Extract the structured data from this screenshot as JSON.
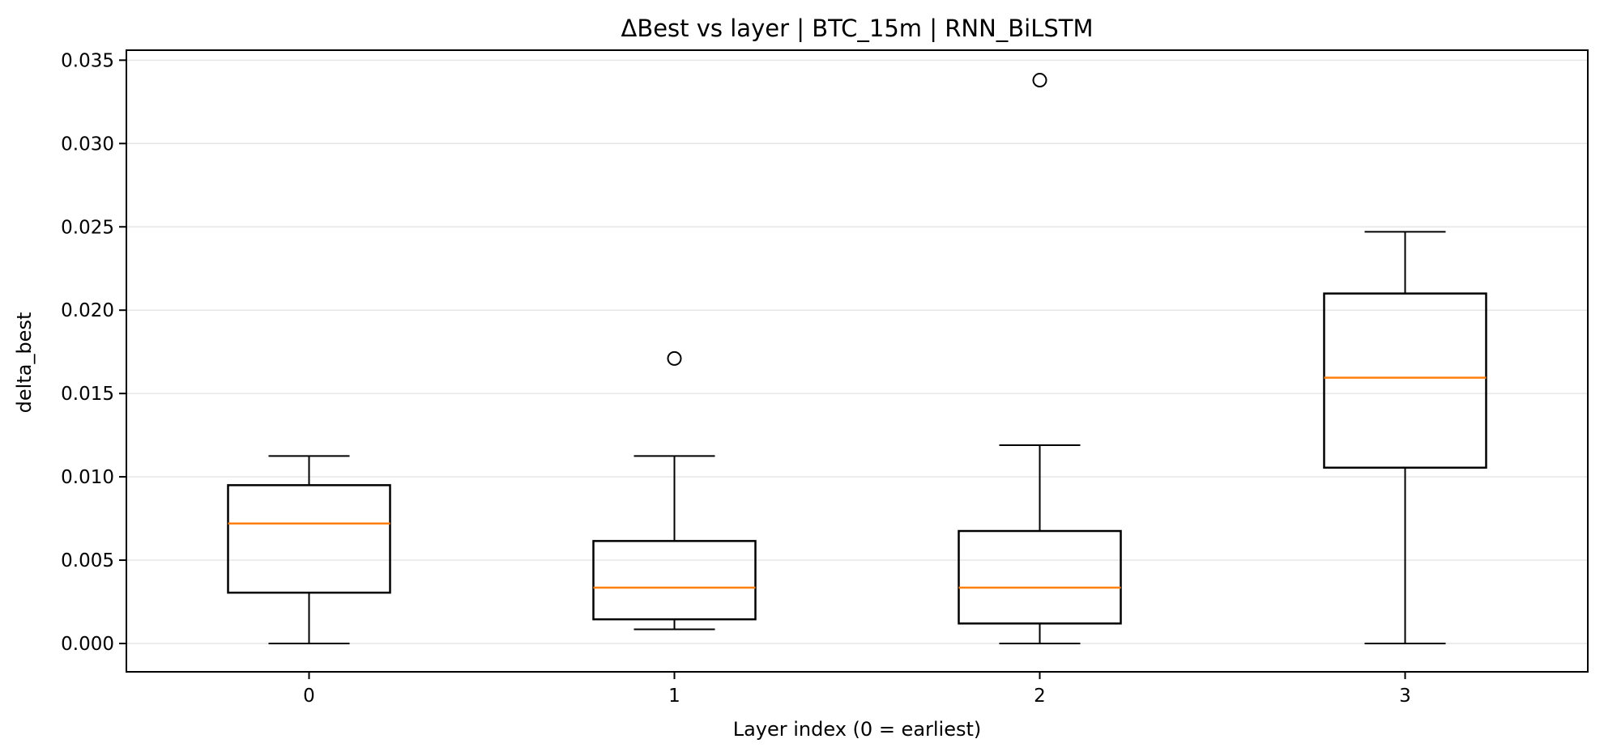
{
  "chart_data": {
    "type": "box",
    "title": "ΔBest vs layer | BTC_15m | RNN_BiLSTM",
    "xlabel": "Layer index (0 = earliest)",
    "ylabel": "delta_best",
    "categories": [
      "0",
      "1",
      "2",
      "3"
    ],
    "ylim": [
      -0.0017,
      0.0356
    ],
    "yticks": [
      "0.000",
      "0.005",
      "0.010",
      "0.015",
      "0.020",
      "0.025",
      "0.030",
      "0.035"
    ],
    "grid": "y",
    "legend": "none",
    "boxes": [
      {
        "category": "0",
        "whisker_low": 0.0,
        "q1": 0.00305,
        "median": 0.0072,
        "q3": 0.0095,
        "whisker_high": 0.01125,
        "outliers": []
      },
      {
        "category": "1",
        "whisker_low": 0.00085,
        "q1": 0.00145,
        "median": 0.00335,
        "q3": 0.00615,
        "whisker_high": 0.01125,
        "outliers": [
          0.0171
        ]
      },
      {
        "category": "2",
        "whisker_low": 0.0,
        "q1": 0.0012,
        "median": 0.00335,
        "q3": 0.00675,
        "whisker_high": 0.0119,
        "outliers": [
          0.0338
        ]
      },
      {
        "category": "3",
        "whisker_low": 0.0,
        "q1": 0.01055,
        "median": 0.01595,
        "q3": 0.021,
        "whisker_high": 0.0247,
        "outliers": []
      }
    ],
    "colors": {
      "box": "#000000",
      "median": "#ff7f0e",
      "grid": "#e6e6e6"
    }
  }
}
